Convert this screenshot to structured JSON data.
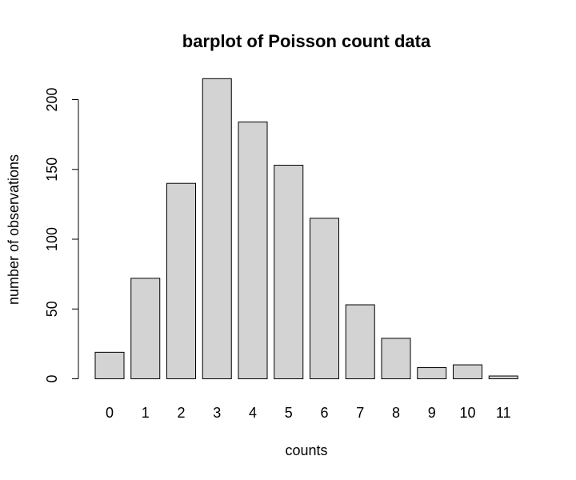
{
  "chart_data": {
    "type": "bar",
    "title": "barplot of Poisson count data",
    "xlabel": "counts",
    "ylabel": "number of observations",
    "categories": [
      "0",
      "1",
      "2",
      "3",
      "4",
      "5",
      "6",
      "7",
      "8",
      "9",
      "10",
      "11"
    ],
    "values": [
      19,
      72,
      140,
      215,
      184,
      153,
      115,
      53,
      29,
      8,
      10,
      2
    ],
    "yticks": [
      "0",
      "50",
      "100",
      "150",
      "200"
    ],
    "ytick_values": [
      0,
      50,
      100,
      150,
      200
    ],
    "ylim": [
      0,
      230
    ],
    "grid": false,
    "colors": {
      "bar_fill": "#d3d3d3",
      "bar_stroke": "#000000"
    }
  }
}
